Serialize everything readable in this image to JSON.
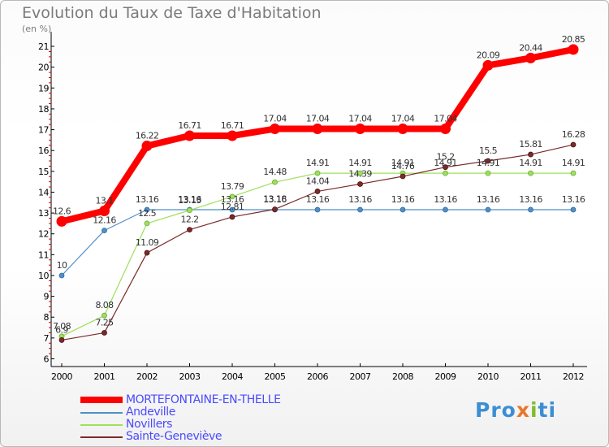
{
  "chart_data": {
    "type": "line",
    "title": "Evolution du Taux de Taxe d'Habitation",
    "subtitle": "(en %)",
    "x": [
      "2000",
      "2001",
      "2002",
      "2003",
      "2004",
      "2005",
      "2006",
      "2007",
      "2008",
      "2009",
      "2010",
      "2011",
      "2012"
    ],
    "yticks": [
      6,
      7,
      8,
      9,
      10,
      11,
      12,
      13,
      14,
      15,
      16,
      17,
      18,
      19,
      20,
      21
    ],
    "ylim": [
      6,
      21.7
    ],
    "grid": false,
    "legend_position": "bottom-left",
    "series": [
      {
        "name": "MORTEFONTAINE-EN-THELLE",
        "color": "#ff0000",
        "values": [
          12.6,
          13.1,
          16.22,
          16.71,
          16.71,
          17.04,
          17.04,
          17.04,
          17.04,
          17.04,
          20.09,
          20.44,
          20.85
        ],
        "labels": [
          "12.6",
          "13.1",
          "16.22",
          "16.71",
          "16.71",
          "17.04",
          "17.04",
          "17.04",
          "17.04",
          "17.04",
          "20.09",
          "20.44",
          "20.85"
        ]
      },
      {
        "name": "Andeville",
        "color": "#4f8fc6",
        "values": [
          10,
          12.16,
          13.16,
          13.16,
          13.16,
          13.16,
          13.16,
          13.16,
          13.16,
          13.16,
          13.16,
          13.16,
          13.16
        ],
        "labels": [
          "10",
          "12.16",
          "13.16",
          "13.16",
          "13.16",
          "13.16",
          "13.16",
          "13.16",
          "13.16",
          "13.16",
          "13.16",
          "13.16",
          "13.16"
        ]
      },
      {
        "name": "Novillers",
        "color": "#9ee05a",
        "values": [
          7.08,
          8.08,
          12.5,
          13.13,
          13.79,
          14.48,
          14.91,
          14.91,
          14.91,
          14.91,
          14.91,
          14.91,
          14.91
        ],
        "labels": [
          "7.08",
          "8.08",
          "12.5",
          "13.13",
          "13.79",
          "14.48",
          "14.91",
          "14.91",
          "14.91",
          "14.91",
          "14.91",
          "14.91",
          "14.91"
        ]
      },
      {
        "name": "Sainte-Geneviève",
        "color": "#7a2a2a",
        "values": [
          6.9,
          7.25,
          11.09,
          12.2,
          12.81,
          13.18,
          14.04,
          14.39,
          14.76,
          15.2,
          15.5,
          15.81,
          16.28
        ],
        "labels": [
          "6.9",
          "7.25",
          "11.09",
          "12.2",
          "12.81",
          "13.18",
          "14.04",
          "14.39",
          "14.76",
          "15.2",
          "15.5",
          "15.81",
          "16.28"
        ]
      }
    ]
  },
  "logo": {
    "text": "Proxiti"
  }
}
